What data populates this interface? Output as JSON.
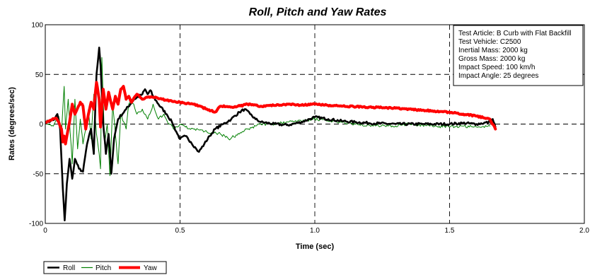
{
  "chart_data": {
    "type": "line",
    "title": "Roll, Pitch and Yaw Rates",
    "xlabel": "Time (sec)",
    "ylabel": "Rates (degrees/sec)",
    "xlim": [
      0,
      2.0
    ],
    "ylim": [
      -100,
      100
    ],
    "x_ticks": [
      {
        "value": 0,
        "label": "0"
      },
      {
        "value": 0.5,
        "label": "0.5"
      },
      {
        "value": 1.0,
        "label": "1.0"
      },
      {
        "value": 1.5,
        "label": "1.5"
      },
      {
        "value": 2.0,
        "label": "2.0"
      }
    ],
    "y_ticks": [
      {
        "value": -100,
        "label": "-100"
      },
      {
        "value": -50,
        "label": "-50"
      },
      {
        "value": 0,
        "label": "0"
      },
      {
        "value": 50,
        "label": "50"
      },
      {
        "value": 100,
        "label": "100"
      }
    ],
    "grid": true,
    "legend_position": "bottom-left",
    "info_box": {
      "position": "top-right",
      "lines": [
        "Test Article: B Curb with Flat Backfill",
        "Test Vehicle: C2500",
        "Inertial Mass: 2000 kg",
        "Gross Mass: 2000 kg",
        "Impact Speed: 100 km/h",
        "Impact Angle: 25 degrees"
      ]
    },
    "series": [
      {
        "name": "Roll",
        "color": "#000000",
        "width": 2.6,
        "jitter": 2.5,
        "points": [
          [
            0,
            2
          ],
          [
            0.02,
            3
          ],
          [
            0.035,
            5
          ],
          [
            0.045,
            10
          ],
          [
            0.055,
            -5
          ],
          [
            0.065,
            -65
          ],
          [
            0.072,
            -97
          ],
          [
            0.08,
            -60
          ],
          [
            0.09,
            -35
          ],
          [
            0.1,
            -55
          ],
          [
            0.11,
            -35
          ],
          [
            0.125,
            -45
          ],
          [
            0.14,
            -48
          ],
          [
            0.155,
            -20
          ],
          [
            0.17,
            -5
          ],
          [
            0.18,
            -30
          ],
          [
            0.19,
            50
          ],
          [
            0.2,
            77
          ],
          [
            0.205,
            60
          ],
          [
            0.215,
            0
          ],
          [
            0.225,
            -30
          ],
          [
            0.235,
            -10
          ],
          [
            0.245,
            -50
          ],
          [
            0.255,
            -15
          ],
          [
            0.27,
            5
          ],
          [
            0.3,
            15
          ],
          [
            0.33,
            25
          ],
          [
            0.36,
            30
          ],
          [
            0.37,
            35
          ],
          [
            0.38,
            30
          ],
          [
            0.39,
            34
          ],
          [
            0.4,
            28
          ],
          [
            0.42,
            20
          ],
          [
            0.45,
            10
          ],
          [
            0.47,
            2
          ],
          [
            0.49,
            -10
          ],
          [
            0.5,
            -15
          ],
          [
            0.52,
            -12
          ],
          [
            0.54,
            -18
          ],
          [
            0.56,
            -25
          ],
          [
            0.57,
            -28
          ],
          [
            0.59,
            -20
          ],
          [
            0.61,
            -12
          ],
          [
            0.63,
            -5
          ],
          [
            0.66,
            0
          ],
          [
            0.69,
            5
          ],
          [
            0.72,
            12
          ],
          [
            0.74,
            15
          ],
          [
            0.76,
            10
          ],
          [
            0.78,
            5
          ],
          [
            0.8,
            2
          ],
          [
            0.85,
            0
          ],
          [
            0.9,
            -1
          ],
          [
            0.95,
            2
          ],
          [
            0.98,
            5
          ],
          [
            1.0,
            7
          ],
          [
            1.05,
            5
          ],
          [
            1.1,
            3
          ],
          [
            1.15,
            2
          ],
          [
            1.2,
            1
          ],
          [
            1.3,
            0
          ],
          [
            1.4,
            0
          ],
          [
            1.5,
            0
          ],
          [
            1.55,
            1
          ],
          [
            1.6,
            0
          ],
          [
            1.65,
            2
          ],
          [
            1.66,
            5
          ],
          [
            1.67,
            -3
          ]
        ]
      },
      {
        "name": "Pitch",
        "color": "#008000",
        "width": 1.0,
        "jitter": 3,
        "points": [
          [
            0,
            2
          ],
          [
            0.03,
            -2
          ],
          [
            0.05,
            8
          ],
          [
            0.06,
            -10
          ],
          [
            0.07,
            38
          ],
          [
            0.075,
            -5
          ],
          [
            0.085,
            25
          ],
          [
            0.1,
            -40
          ],
          [
            0.11,
            25
          ],
          [
            0.12,
            -25
          ],
          [
            0.13,
            5
          ],
          [
            0.14,
            -20
          ],
          [
            0.15,
            -5
          ],
          [
            0.16,
            15
          ],
          [
            0.17,
            -15
          ],
          [
            0.18,
            30
          ],
          [
            0.19,
            -10
          ],
          [
            0.2,
            -30
          ],
          [
            0.205,
            -45
          ],
          [
            0.21,
            67
          ],
          [
            0.22,
            -20
          ],
          [
            0.23,
            0
          ],
          [
            0.24,
            -52
          ],
          [
            0.25,
            20
          ],
          [
            0.26,
            -10
          ],
          [
            0.27,
            -40
          ],
          [
            0.28,
            10
          ],
          [
            0.3,
            -5
          ],
          [
            0.31,
            20
          ],
          [
            0.32,
            25
          ],
          [
            0.34,
            10
          ],
          [
            0.36,
            15
          ],
          [
            0.38,
            5
          ],
          [
            0.4,
            20
          ],
          [
            0.42,
            5
          ],
          [
            0.44,
            10
          ],
          [
            0.46,
            0
          ],
          [
            0.48,
            -5
          ],
          [
            0.5,
            0
          ],
          [
            0.52,
            -3
          ],
          [
            0.55,
            -5
          ],
          [
            0.6,
            -8
          ],
          [
            0.65,
            -10
          ],
          [
            0.68,
            -15
          ],
          [
            0.72,
            -10
          ],
          [
            0.75,
            -5
          ],
          [
            0.78,
            -2
          ],
          [
            0.8,
            0
          ],
          [
            0.85,
            0
          ],
          [
            0.9,
            2
          ],
          [
            0.95,
            3
          ],
          [
            1.0,
            5
          ],
          [
            1.05,
            3
          ],
          [
            1.1,
            2
          ],
          [
            1.15,
            0
          ],
          [
            1.2,
            -1
          ],
          [
            1.3,
            -2
          ],
          [
            1.35,
            0
          ],
          [
            1.4,
            -1
          ],
          [
            1.45,
            -2
          ],
          [
            1.5,
            -3
          ],
          [
            1.55,
            -2
          ],
          [
            1.6,
            -3
          ],
          [
            1.65,
            -2
          ]
        ]
      },
      {
        "name": "Yaw",
        "color": "#ff0000",
        "width": 4.0,
        "jitter": 1.5,
        "points": [
          [
            0,
            2
          ],
          [
            0.02,
            4
          ],
          [
            0.04,
            6
          ],
          [
            0.05,
            2
          ],
          [
            0.06,
            -5
          ],
          [
            0.065,
            -18
          ],
          [
            0.07,
            -12
          ],
          [
            0.075,
            -20
          ],
          [
            0.08,
            -12
          ],
          [
            0.09,
            2
          ],
          [
            0.1,
            20
          ],
          [
            0.11,
            10
          ],
          [
            0.12,
            16
          ],
          [
            0.13,
            22
          ],
          [
            0.14,
            18
          ],
          [
            0.15,
            -5
          ],
          [
            0.16,
            10
          ],
          [
            0.17,
            22
          ],
          [
            0.18,
            15
          ],
          [
            0.19,
            42
          ],
          [
            0.2,
            25
          ],
          [
            0.205,
            -3
          ],
          [
            0.215,
            35
          ],
          [
            0.225,
            15
          ],
          [
            0.235,
            32
          ],
          [
            0.25,
            15
          ],
          [
            0.26,
            28
          ],
          [
            0.27,
            20
          ],
          [
            0.28,
            35
          ],
          [
            0.29,
            38
          ],
          [
            0.3,
            25
          ],
          [
            0.31,
            28
          ],
          [
            0.32,
            22
          ],
          [
            0.34,
            30
          ],
          [
            0.36,
            25
          ],
          [
            0.38,
            27
          ],
          [
            0.4,
            27
          ],
          [
            0.45,
            24
          ],
          [
            0.5,
            22
          ],
          [
            0.55,
            20
          ],
          [
            0.6,
            15
          ],
          [
            0.63,
            12
          ],
          [
            0.65,
            18
          ],
          [
            0.7,
            17
          ],
          [
            0.75,
            20
          ],
          [
            0.8,
            18
          ],
          [
            0.9,
            20
          ],
          [
            0.95,
            19
          ],
          [
            1.0,
            20
          ],
          [
            1.1,
            18
          ],
          [
            1.2,
            17
          ],
          [
            1.3,
            16
          ],
          [
            1.4,
            14
          ],
          [
            1.5,
            12
          ],
          [
            1.55,
            10
          ],
          [
            1.6,
            8
          ],
          [
            1.65,
            5
          ],
          [
            1.67,
            -5
          ]
        ]
      }
    ]
  }
}
